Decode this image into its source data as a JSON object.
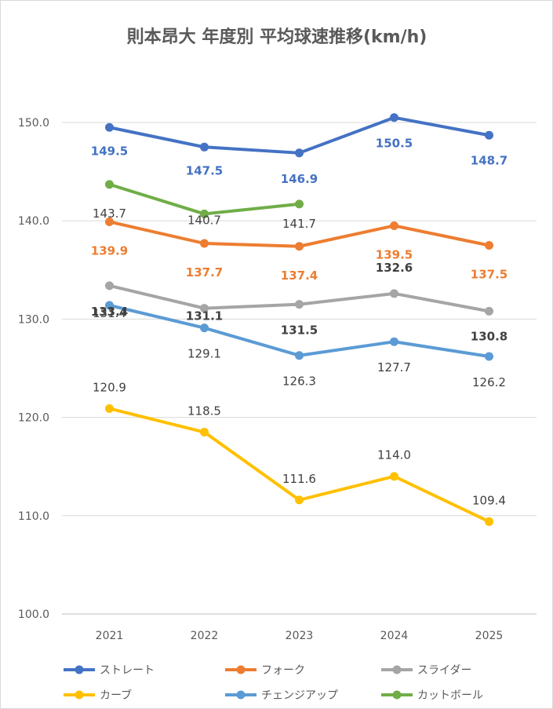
{
  "chart_data": {
    "type": "line",
    "title": "則本昂大 年度別 平均球速推移(km/h)",
    "xlabel": "",
    "ylabel": "",
    "categories": [
      "2021",
      "2022",
      "2023",
      "2024",
      "2025"
    ],
    "ylim": [
      100,
      150
    ],
    "yticks": [
      "100.0",
      "110.0",
      "120.0",
      "130.0",
      "140.0",
      "150.0"
    ],
    "grid": true,
    "legend_position": "bottom",
    "series": [
      {
        "name": "ストレート",
        "color": "#4472c4",
        "values": [
          149.5,
          147.5,
          146.9,
          150.5,
          148.7
        ],
        "labels": [
          "149.5",
          "147.5",
          "146.9",
          "150.5",
          "148.7"
        ],
        "label_color": "#4472c4",
        "bold": true
      },
      {
        "name": "フォーク",
        "color": "#ed7d31",
        "values": [
          139.9,
          137.7,
          137.4,
          139.5,
          137.5
        ],
        "labels": [
          "139.9",
          "137.7",
          "137.4",
          "139.5",
          "137.5"
        ],
        "label_color": "#ed7d31",
        "bold": true
      },
      {
        "name": "スライダー",
        "color": "#a5a5a5",
        "values": [
          133.4,
          131.1,
          131.5,
          132.6,
          130.8
        ],
        "labels": [
          "133.4",
          "131.1",
          "131.5",
          "132.6",
          "130.8"
        ],
        "label_color": "#404040",
        "bold": true
      },
      {
        "name": "カーブ",
        "color": "#ffc000",
        "values": [
          120.9,
          118.5,
          111.6,
          114.0,
          109.4
        ],
        "labels": [
          "120.9",
          "118.5",
          "111.6",
          "114.0",
          "109.4"
        ],
        "label_color": "#404040",
        "bold": false
      },
      {
        "name": "チェンジアップ",
        "color": "#5b9bd5",
        "values": [
          131.4,
          129.1,
          126.3,
          127.7,
          126.2
        ],
        "labels": [
          "131.4",
          "129.1",
          "126.3",
          "127.7",
          "126.2"
        ],
        "label_color": "#404040",
        "bold": false
      },
      {
        "name": "カットボール",
        "color": "#70ad47",
        "values": [
          143.7,
          140.7,
          141.7,
          null,
          null
        ],
        "labels": [
          "143.7",
          "140.7",
          "141.7",
          "",
          ""
        ],
        "label_color": "#404040",
        "bold": false
      }
    ]
  }
}
